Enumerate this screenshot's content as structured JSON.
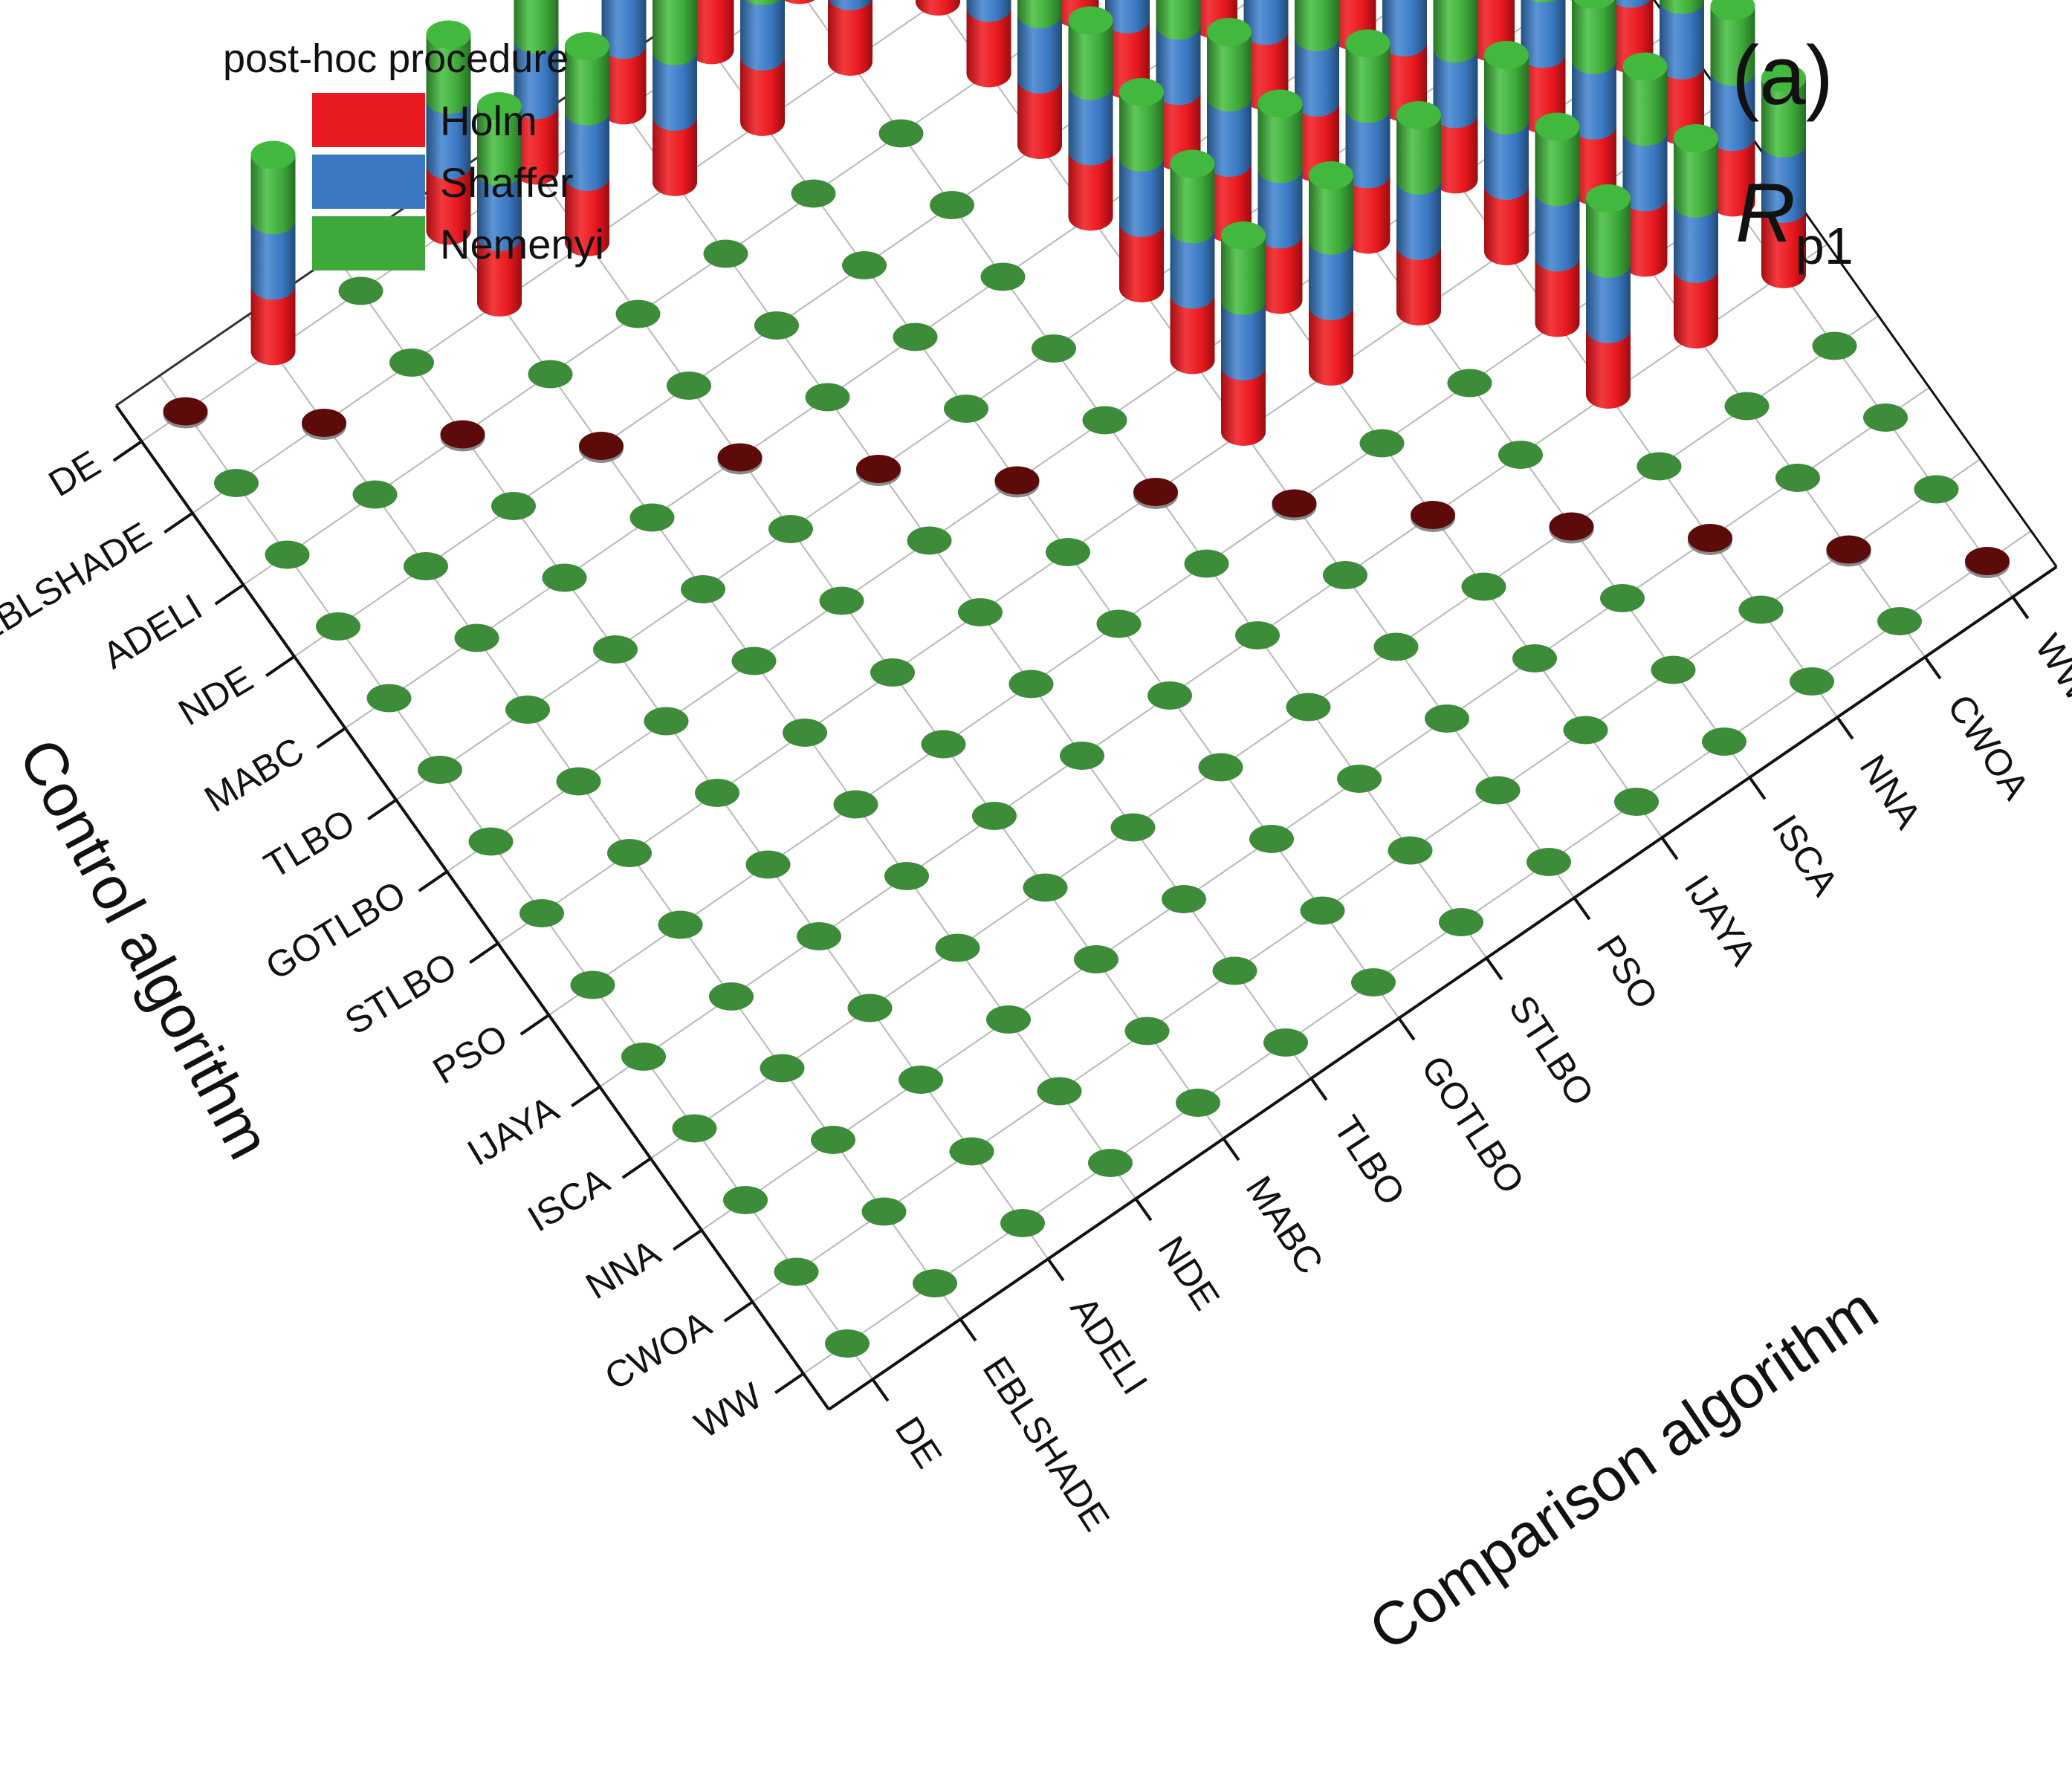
{
  "panel": {
    "label": "(a)",
    "metric_main": "R",
    "metric_sub": "p1"
  },
  "legend": {
    "title": "post-hoc procedure",
    "items": [
      {
        "label": "Holm",
        "color": "#e8191f"
      },
      {
        "label": "Shaffer",
        "color": "#3a78c2"
      },
      {
        "label": "Nemenyi",
        "color": "#3ea93a"
      }
    ]
  },
  "chart_data": {
    "type": "3d-stacked-bar",
    "title": "",
    "x_axis_label": "Comparison algorithm",
    "y_axis_label": "Control algorithm",
    "algorithms": [
      "DE",
      "EBLSHADE",
      "ADELI",
      "NDE",
      "MABC",
      "TLBO",
      "GOTLBO",
      "STLBO",
      "PSO",
      "IJAYA",
      "ISCA",
      "NNA",
      "CWOA",
      "WW"
    ],
    "series": [
      {
        "name": "Holm",
        "color": "#e8191f"
      },
      {
        "name": "Shaffer",
        "color": "#3a78c2"
      },
      {
        "name": "Nemenyi",
        "color": "#3ea93a"
      }
    ],
    "segment_value": 1,
    "significant_pairs": [
      [
        "DE",
        "EBLSHADE"
      ],
      [
        "DE",
        "NDE"
      ],
      [
        "DE",
        "MABC"
      ],
      [
        "DE",
        "TLBO"
      ],
      [
        "DE",
        "GOTLBO"
      ],
      [
        "DE",
        "STLBO"
      ],
      [
        "DE",
        "PSO"
      ],
      [
        "DE",
        "IJAYA"
      ],
      [
        "DE",
        "ISCA"
      ],
      [
        "DE",
        "NNA"
      ],
      [
        "DE",
        "CWOA"
      ],
      [
        "DE",
        "WW"
      ],
      [
        "EBLSHADE",
        "NDE"
      ],
      [
        "EBLSHADE",
        "MABC"
      ],
      [
        "EBLSHADE",
        "TLBO"
      ],
      [
        "EBLSHADE",
        "GOTLBO"
      ],
      [
        "EBLSHADE",
        "STLBO"
      ],
      [
        "EBLSHADE",
        "PSO"
      ],
      [
        "EBLSHADE",
        "IJAYA"
      ],
      [
        "EBLSHADE",
        "ISCA"
      ],
      [
        "EBLSHADE",
        "NNA"
      ],
      [
        "EBLSHADE",
        "CWOA"
      ],
      [
        "EBLSHADE",
        "WW"
      ],
      [
        "ADELI",
        "PSO"
      ],
      [
        "ADELI",
        "IJAYA"
      ],
      [
        "ADELI",
        "ISCA"
      ],
      [
        "ADELI",
        "NNA"
      ],
      [
        "ADELI",
        "CWOA"
      ],
      [
        "ADELI",
        "WW"
      ],
      [
        "NDE",
        "PSO"
      ],
      [
        "NDE",
        "IJAYA"
      ],
      [
        "NDE",
        "ISCA"
      ],
      [
        "NDE",
        "NNA"
      ],
      [
        "NDE",
        "CWOA"
      ],
      [
        "NDE",
        "WW"
      ],
      [
        "MABC",
        "PSO"
      ],
      [
        "MABC",
        "IJAYA"
      ],
      [
        "MABC",
        "ISCA"
      ],
      [
        "MABC",
        "NNA"
      ],
      [
        "MABC",
        "CWOA"
      ],
      [
        "MABC",
        "WW"
      ],
      [
        "TLBO",
        "PSO"
      ],
      [
        "TLBO",
        "IJAYA"
      ],
      [
        "TLBO",
        "ISCA"
      ],
      [
        "TLBO",
        "NNA"
      ],
      [
        "TLBO",
        "CWOA"
      ],
      [
        "TLBO",
        "WW"
      ],
      [
        "GOTLBO",
        "PSO"
      ],
      [
        "GOTLBO",
        "IJAYA"
      ],
      [
        "GOTLBO",
        "ISCA"
      ],
      [
        "GOTLBO",
        "NNA"
      ],
      [
        "GOTLBO",
        "CWOA"
      ],
      [
        "GOTLBO",
        "WW"
      ],
      [
        "STLBO",
        "PSO"
      ],
      [
        "STLBO",
        "IJAYA"
      ],
      [
        "STLBO",
        "ISCA"
      ],
      [
        "STLBO",
        "NNA"
      ],
      [
        "STLBO",
        "CWOA"
      ],
      [
        "STLBO",
        "WW"
      ],
      [
        "PSO",
        "NNA"
      ],
      [
        "PSO",
        "CWOA"
      ],
      [
        "PSO",
        "WW"
      ],
      [
        "IJAYA",
        "NNA"
      ],
      [
        "IJAYA",
        "CWOA"
      ],
      [
        "IJAYA",
        "WW"
      ]
    ],
    "diagonal_marker_color": "#5c0a0a",
    "empty_marker_color": "#3d8c3a",
    "grid": true
  }
}
